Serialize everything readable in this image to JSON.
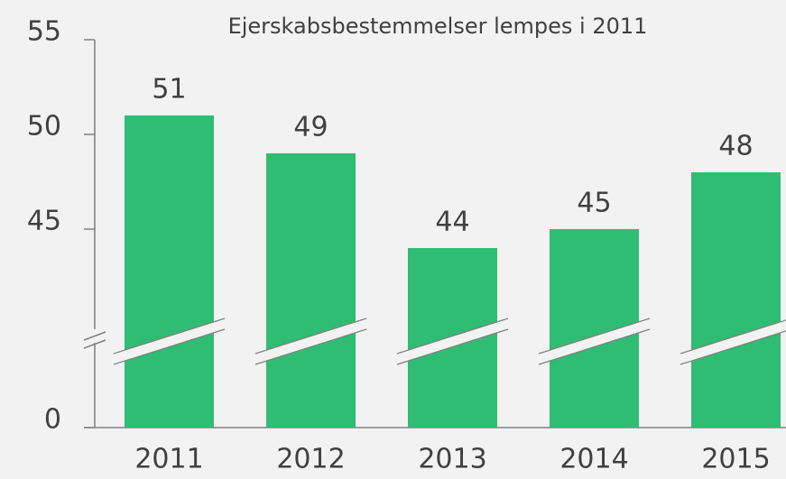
{
  "chart_data": {
    "type": "bar",
    "title": "Ejerskabsbestemmelser lempes i 2011",
    "categories": [
      "2011",
      "2012",
      "2013",
      "2014",
      "2015"
    ],
    "values": [
      51,
      49,
      44,
      45,
      48
    ],
    "color": "#2ebd72",
    "ylim": [
      0,
      55
    ],
    "yticks": [
      0,
      45,
      50,
      55
    ],
    "axis_break": true
  }
}
